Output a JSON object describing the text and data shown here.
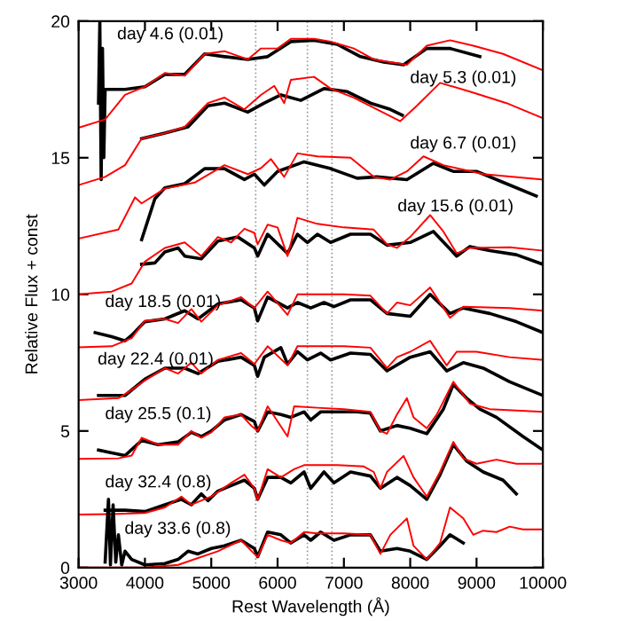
{
  "chart_data": {
    "type": "line",
    "xlabel": "Rest Wavelength (Å)",
    "ylabel": "Relative Flux + const",
    "xlim": [
      3000,
      10000
    ],
    "ylim": [
      0,
      20
    ],
    "xticks": [
      3000,
      4000,
      5000,
      6000,
      7000,
      8000,
      9000,
      10000
    ],
    "yticks": [
      0,
      5,
      10,
      15,
      20
    ],
    "grid": false,
    "legend": false,
    "line_style": "solid",
    "marker": "none",
    "ref_lines": [
      {
        "axis": "x",
        "value": 5670,
        "color": "#999999",
        "line_style": "dotted"
      },
      {
        "axis": "x",
        "value": 6450,
        "color": "#999999",
        "line_style": "dotted"
      },
      {
        "axis": "x",
        "value": 6820,
        "color": "#999999",
        "line_style": "dotted"
      }
    ],
    "annotations": [
      "day 4.6 (0.01)",
      "day 5.3 (0.01)",
      "day 6.7 (0.01)",
      "day 15.6 (0.01)",
      "day 18.5 (0.01)",
      "day 22.4 (0.01)",
      "day 25.5 (0.1)",
      "day 32.4 (0.8)",
      "day 33.6 (0.8)"
    ],
    "series": [
      {
        "color": "#000000",
        "x": [
          3300,
          3320,
          3340,
          3360,
          3380,
          3400,
          3700,
          4000,
          4300,
          4600,
          4900,
          5200,
          5550,
          5850,
          6200,
          6550,
          6900,
          7250,
          7600,
          7900,
          8250,
          8600,
          9050
        ],
        "values": [
          17.0,
          20.0,
          14.2,
          19.0,
          15.0,
          17.5,
          17.5,
          17.6,
          18.05,
          18.05,
          18.8,
          18.7,
          18.6,
          18.7,
          19.25,
          19.3,
          19.15,
          18.7,
          18.5,
          18.4,
          19.0,
          19.0,
          18.7
        ]
      },
      {
        "color": "#ff0000",
        "x": [
          3000,
          3400,
          3700,
          4000,
          4300,
          4600,
          4900,
          5200,
          5550,
          5750,
          6000,
          6200,
          6550,
          6800,
          7150,
          7450,
          7700,
          7950,
          8250,
          8600,
          8950,
          9400,
          10000
        ],
        "values": [
          16.1,
          16.4,
          17.3,
          17.6,
          18.1,
          18.0,
          18.8,
          18.9,
          18.6,
          19.0,
          19.0,
          19.35,
          19.35,
          19.25,
          19.0,
          18.6,
          18.5,
          18.4,
          19.1,
          19.3,
          19.1,
          18.8,
          18.2
        ]
      },
      {
        "color": "#000000",
        "x": [
          3950,
          4300,
          4650,
          4950,
          5200,
          5550,
          5800,
          6050,
          6350,
          6700,
          7050,
          7400,
          7700,
          7880
        ],
        "values": [
          15.7,
          15.9,
          16.13,
          16.9,
          17.0,
          16.67,
          17.0,
          17.3,
          17.1,
          17.53,
          17.42,
          17.0,
          16.77,
          16.56
        ]
      },
      {
        "color": "#ff0000",
        "x": [
          3000,
          3400,
          3700,
          3950,
          4300,
          4600,
          4950,
          5200,
          5500,
          5750,
          5950,
          6100,
          6200,
          6550,
          6800,
          7150,
          7500,
          7850,
          8100,
          8450,
          8900,
          9450,
          10000
        ],
        "values": [
          14.0,
          14.3,
          14.73,
          15.7,
          15.9,
          16.13,
          17.0,
          17.2,
          16.77,
          17.3,
          17.63,
          17.0,
          17.85,
          17.96,
          17.53,
          17.2,
          16.77,
          16.34,
          16.9,
          17.74,
          17.42,
          17.0,
          16.45
        ]
      },
      {
        "color": "#000000",
        "x": [
          3950,
          4150,
          4300,
          4600,
          4900,
          5200,
          5500,
          5650,
          5800,
          6000,
          6400,
          6800,
          7200,
          7500,
          7950,
          8350,
          8650,
          9000,
          9400,
          9900
        ],
        "values": [
          12.0,
          13.5,
          13.9,
          14.05,
          14.6,
          14.6,
          14.2,
          14.4,
          14.0,
          14.5,
          14.85,
          14.6,
          14.25,
          14.3,
          14.2,
          14.8,
          14.5,
          14.5,
          14.1,
          13.6
        ]
      },
      {
        "color": "#ff0000",
        "x": [
          3000,
          3600,
          3850,
          3950,
          4300,
          4750,
          5200,
          5550,
          5750,
          5900,
          6100,
          6300,
          6600,
          7100,
          7450,
          7700,
          7950,
          8200,
          8500,
          9100,
          10000
        ],
        "values": [
          12.04,
          12.37,
          13.55,
          13.33,
          13.87,
          14.09,
          14.73,
          14.4,
          14.62,
          14.95,
          14.3,
          15.16,
          15.05,
          15.0,
          14.3,
          14.2,
          14.5,
          15.05,
          14.73,
          14.4,
          14.2
        ]
      },
      {
        "color": "#000000",
        "x": [
          3950,
          4150,
          4300,
          4500,
          4600,
          4850,
          5100,
          5400,
          5650,
          5700,
          5850,
          6150,
          6300,
          6450,
          6600,
          6800,
          7100,
          7400,
          7650,
          8000,
          8350,
          8700,
          8900,
          9200,
          9600,
          10000
        ],
        "values": [
          11.1,
          11.15,
          11.55,
          11.7,
          11.4,
          11.3,
          11.95,
          12.1,
          11.7,
          11.4,
          12.2,
          11.5,
          12.2,
          11.9,
          12.2,
          11.9,
          12.2,
          12.2,
          11.8,
          11.9,
          12.3,
          11.4,
          11.75,
          11.6,
          11.45,
          11.1
        ]
      },
      {
        "color": "#ff0000",
        "x": [
          3000,
          3500,
          3800,
          4000,
          4300,
          4600,
          4850,
          5100,
          5300,
          5500,
          5650,
          5700,
          5850,
          6000,
          6150,
          6300,
          6600,
          7000,
          7450,
          7650,
          7800,
          8000,
          8300,
          8500,
          8700,
          8900,
          9500,
          10000
        ],
        "values": [
          10.0,
          10.1,
          10.4,
          11.2,
          11.7,
          11.9,
          11.4,
          12.1,
          11.9,
          12.4,
          12.25,
          11.83,
          12.55,
          12.45,
          11.4,
          12.8,
          12.58,
          12.45,
          12.37,
          11.83,
          11.7,
          12.1,
          12.9,
          12.3,
          11.5,
          11.7,
          11.72,
          11.6
        ]
      },
      {
        "color": "#000000",
        "x": [
          3250,
          3500,
          3700,
          3800,
          4000,
          4300,
          4600,
          4800,
          5100,
          5450,
          5650,
          5700,
          5850,
          6150,
          6300,
          6500,
          6700,
          6850,
          7100,
          7400,
          7650,
          8000,
          8300,
          8600,
          8800,
          9200,
          9600,
          10000
        ],
        "values": [
          8.6,
          8.45,
          8.3,
          8.5,
          9.0,
          9.1,
          9.4,
          9.1,
          9.65,
          9.8,
          9.5,
          9.03,
          9.9,
          9.5,
          9.7,
          9.5,
          9.7,
          9.55,
          9.8,
          9.8,
          9.3,
          9.2,
          10.0,
          9.3,
          9.5,
          9.3,
          9.0,
          8.6
        ]
      },
      {
        "color": "#ff0000",
        "x": [
          3000,
          3500,
          3800,
          4000,
          4300,
          4500,
          4700,
          4850,
          5100,
          5450,
          5650,
          5850,
          6150,
          6300,
          6600,
          7000,
          7400,
          7650,
          7800,
          8000,
          8300,
          8600,
          8800,
          9500,
          10000
        ],
        "values": [
          8.06,
          8.1,
          8.4,
          9.03,
          9.1,
          8.95,
          9.46,
          9.0,
          9.6,
          9.9,
          9.5,
          10.1,
          9.25,
          10.0,
          10.0,
          10.0,
          9.95,
          9.3,
          9.7,
          9.6,
          10.25,
          9.14,
          9.55,
          9.5,
          9.4
        ]
      },
      {
        "color": "#000000",
        "x": [
          3300,
          3700,
          4000,
          4300,
          4600,
          4800,
          5100,
          5450,
          5650,
          5700,
          5800,
          6050,
          6150,
          6300,
          6450,
          6650,
          6800,
          7100,
          7400,
          7650,
          8000,
          8300,
          8550,
          8800,
          9100,
          9500,
          10000
        ],
        "values": [
          6.3,
          6.3,
          6.9,
          7.3,
          7.3,
          7.1,
          7.55,
          7.7,
          7.4,
          7.0,
          7.7,
          8.05,
          7.45,
          7.9,
          7.6,
          7.85,
          7.6,
          7.85,
          7.8,
          7.2,
          7.7,
          7.9,
          7.2,
          7.5,
          7.3,
          6.8,
          6.3
        ]
      },
      {
        "color": "#ff0000",
        "x": [
          3000,
          3600,
          3800,
          4000,
          4300,
          4500,
          4700,
          4850,
          5100,
          5450,
          5650,
          5850,
          6150,
          6300,
          6600,
          7000,
          7400,
          7650,
          7800,
          8000,
          8300,
          8550,
          8700,
          9000,
          9500,
          10000
        ],
        "values": [
          6.13,
          6.2,
          6.5,
          6.85,
          7.3,
          7.1,
          7.5,
          7.1,
          7.6,
          7.85,
          7.45,
          8.1,
          7.4,
          8.1,
          8.1,
          8.1,
          8.05,
          7.3,
          7.7,
          7.9,
          8.3,
          7.4,
          7.9,
          7.9,
          7.7,
          7.6
        ]
      },
      {
        "color": "#000000",
        "x": [
          3300,
          3500,
          3700,
          3950,
          4200,
          4500,
          4700,
          4850,
          5000,
          5200,
          5450,
          5650,
          5700,
          5850,
          6050,
          6200,
          6400,
          6500,
          6650,
          6850,
          7200,
          7400,
          7550,
          7800,
          8000,
          8250,
          8500,
          8650,
          8850,
          9050,
          9300,
          9700,
          10000
        ],
        "values": [
          4.3,
          4.2,
          4.1,
          4.65,
          4.5,
          4.6,
          4.95,
          4.8,
          5.0,
          5.4,
          5.6,
          5.35,
          5.0,
          5.7,
          5.6,
          5.5,
          5.7,
          5.4,
          5.7,
          5.7,
          5.7,
          5.65,
          5.0,
          5.2,
          5.1,
          4.9,
          5.8,
          6.7,
          6.2,
          5.8,
          5.5,
          4.8,
          4.3
        ]
      },
      {
        "color": "#ff0000",
        "x": [
          3000,
          3600,
          3800,
          3950,
          4200,
          4500,
          4700,
          4850,
          5000,
          5200,
          5450,
          5600,
          5700,
          5850,
          6150,
          6250,
          6600,
          7000,
          7400,
          7550,
          7650,
          7800,
          7950,
          8050,
          8250,
          8400,
          8650,
          8900,
          9200,
          10000
        ],
        "values": [
          3.98,
          4.0,
          4.1,
          4.75,
          4.5,
          4.5,
          5.0,
          4.75,
          4.95,
          5.5,
          5.6,
          5.2,
          5.0,
          5.9,
          4.8,
          5.9,
          5.85,
          5.8,
          5.7,
          5.0,
          4.9,
          5.6,
          6.2,
          5.5,
          5.1,
          5.6,
          6.8,
          6.0,
          5.8,
          5.7
        ]
      },
      {
        "color": "#000000",
        "x": [
          3400,
          3700,
          4000,
          4300,
          4550,
          4700,
          4850,
          4950,
          5100,
          5300,
          5500,
          5650,
          5700,
          5850,
          6050,
          6200,
          6400,
          6500,
          6700,
          6850,
          7100,
          7400,
          7550,
          7800,
          8000,
          8250,
          8450,
          8650,
          8850,
          9100,
          9400,
          9600
        ],
        "values": [
          2.1,
          2.1,
          2.05,
          2.3,
          2.5,
          2.3,
          2.7,
          2.45,
          2.8,
          3.0,
          3.2,
          2.9,
          2.5,
          3.3,
          3.3,
          3.1,
          3.5,
          2.9,
          3.5,
          3.1,
          3.5,
          3.35,
          2.9,
          3.3,
          3.0,
          2.5,
          3.4,
          4.5,
          3.9,
          3.5,
          3.2,
          2.7
        ]
      },
      {
        "color": "#ff0000",
        "x": [
          3000,
          3500,
          4000,
          4300,
          4550,
          4700,
          5000,
          5300,
          5500,
          5650,
          5700,
          5850,
          6050,
          6250,
          6400,
          6900,
          7300,
          7450,
          7550,
          7650,
          7900,
          8050,
          8250,
          8450,
          8650,
          8800,
          9000,
          9300,
          9600,
          10000
        ],
        "values": [
          1.94,
          1.96,
          2.0,
          2.2,
          2.6,
          2.3,
          2.6,
          3.1,
          3.4,
          2.9,
          2.47,
          3.6,
          3.3,
          3.6,
          3.75,
          3.75,
          3.7,
          3.5,
          2.9,
          3.5,
          4.09,
          3.3,
          2.6,
          3.5,
          4.6,
          4.0,
          3.8,
          3.95,
          3.8,
          3.8
        ]
      },
      {
        "color": "#000000",
        "x": [
          3400,
          3450,
          3480,
          3520,
          3560,
          3600,
          3650,
          3700,
          3800,
          4000,
          4300,
          4500,
          4650,
          4800,
          5000,
          5200,
          5450,
          5650,
          5700,
          5850,
          6050,
          6200,
          6400,
          6500,
          6650,
          6850,
          7100,
          7400,
          7550,
          7800,
          8000,
          8250,
          8450,
          8600,
          8800
        ],
        "values": [
          0.2,
          2.5,
          0.1,
          2.3,
          0.2,
          1.2,
          0.1,
          0.6,
          0.3,
          0.1,
          0.15,
          0.3,
          0.6,
          0.5,
          0.7,
          0.8,
          1.0,
          0.7,
          0.4,
          1.3,
          1.2,
          0.9,
          1.2,
          1.0,
          1.3,
          1.0,
          1.2,
          1.2,
          0.6,
          0.7,
          0.6,
          0.3,
          0.8,
          1.2,
          0.9
        ]
      },
      {
        "color": "#ff0000",
        "x": [
          3000,
          4000,
          4500,
          4800,
          5100,
          5450,
          5650,
          5700,
          5850,
          6050,
          6200,
          6400,
          6600,
          7000,
          7400,
          7550,
          7700,
          7950,
          8050,
          8250,
          8450,
          8600,
          8800,
          8950,
          9100,
          9300,
          9500,
          9700,
          10000
        ],
        "values": [
          0.0,
          0.0,
          0.1,
          0.35,
          0.6,
          1.0,
          0.5,
          0.39,
          1.2,
          1.0,
          0.9,
          1.3,
          1.25,
          1.25,
          1.2,
          0.5,
          1.2,
          1.8,
          0.8,
          0.3,
          0.9,
          2.2,
          1.8,
          1.2,
          1.35,
          1.3,
          1.5,
          1.4,
          1.4
        ]
      }
    ]
  }
}
